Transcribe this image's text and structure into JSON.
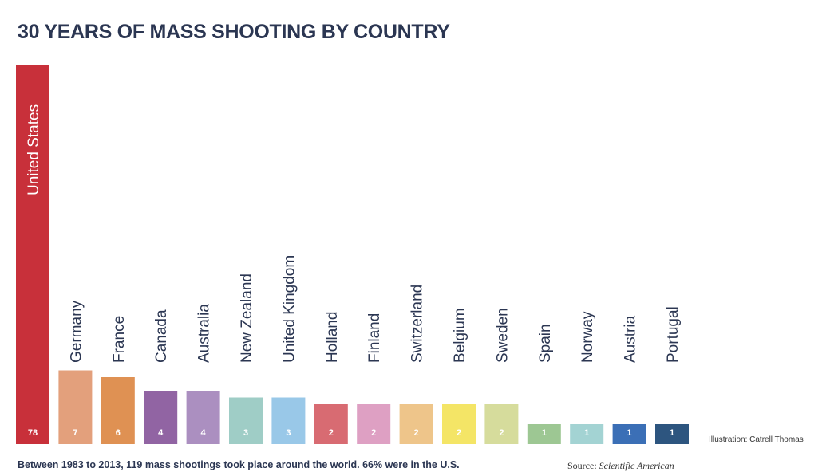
{
  "chart_data": {
    "type": "bar",
    "title": "30 YEARS OF MASS SHOOTING BY COUNTRY",
    "categories": [
      "United States",
      "Germany",
      "France",
      "Canada",
      "Australia",
      "New Zealand",
      "United Kingdom",
      "Holland",
      "Finland",
      "Switzerland",
      "Belgium",
      "Sweden",
      "Spain",
      "Norway",
      "Austria",
      "Portugal"
    ],
    "values": [
      78,
      7,
      6,
      4,
      4,
      3,
      3,
      2,
      2,
      2,
      2,
      2,
      1,
      1,
      1,
      1
    ],
    "colors": [
      "#c8303a",
      "#e3a07c",
      "#df9153",
      "#9164a3",
      "#ab8fc0",
      "#9fcdc6",
      "#99c8e8",
      "#d86b72",
      "#dea0c3",
      "#eec58a",
      "#f4e566",
      "#d6dc9c",
      "#9dc793",
      "#a3d3d3",
      "#3b6fb6",
      "#2d557f"
    ],
    "xlabel": "",
    "ylabel": "",
    "caption": "Between 1983 to 2013, 119 mass shootings took place around the world. 66% were in the U.S.",
    "source_label": "Source: ",
    "source_name": "Scientific American",
    "credit": "Illustration: Catrell Thomas"
  }
}
